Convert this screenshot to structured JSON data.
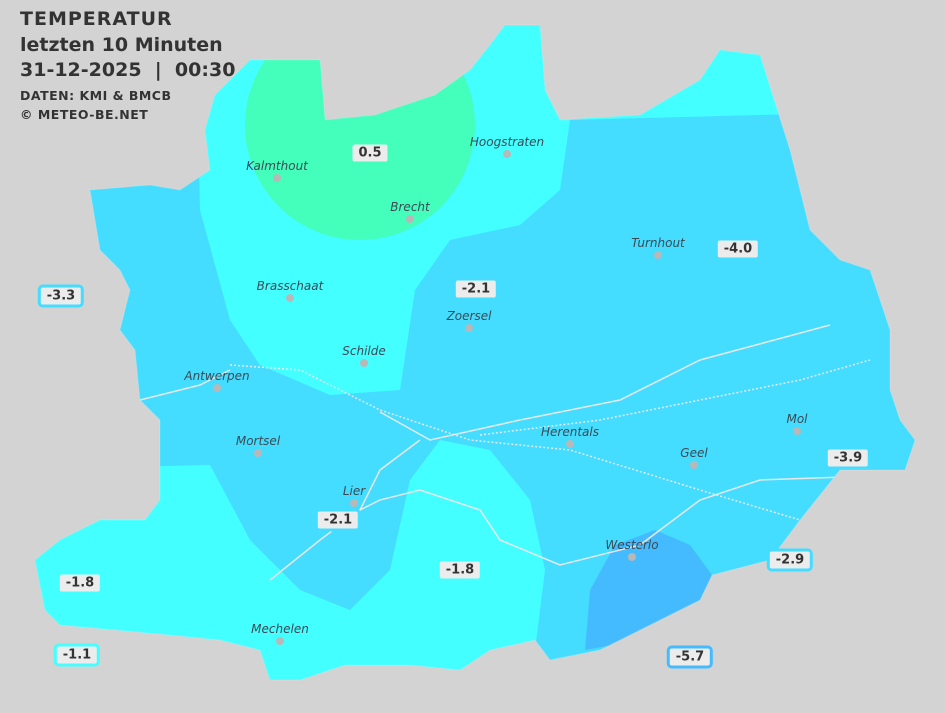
{
  "header": {
    "title": "TEMPERATUR",
    "subtitle": "letzten 10 Minuten",
    "datetime": "31-12-2025  |  00:30",
    "source": "DATEN: KMI & BMCB",
    "copyright": "© METEO-BE.NET"
  },
  "colors": {
    "background": "#d3d3d3",
    "zone_0_to_1": "#44ffbb",
    "zone_-1_to_-2": "#44ffff",
    "zone_-2_to_-5": "#44ddff",
    "zone_-5_to_-6": "#44bbff"
  },
  "cities": [
    {
      "name": "Kalmthout"
    },
    {
      "name": "Hoogstraten"
    },
    {
      "name": "Brecht"
    },
    {
      "name": "Turnhout"
    },
    {
      "name": "Brasschaat"
    },
    {
      "name": "Zoersel"
    },
    {
      "name": "Schilde"
    },
    {
      "name": "Antwerpen"
    },
    {
      "name": "Herentals"
    },
    {
      "name": "Mol"
    },
    {
      "name": "Mortsel"
    },
    {
      "name": "Geel"
    },
    {
      "name": "Lier"
    },
    {
      "name": "Westerlo"
    },
    {
      "name": "Mechelen"
    }
  ],
  "readings": [
    {
      "value": "0.5",
      "color": "#44ffbb"
    },
    {
      "value": "-4.0",
      "color": "#44ddff"
    },
    {
      "value": "-3.3",
      "color": "#44ddff"
    },
    {
      "value": "-2.1",
      "color": "#44ddff"
    },
    {
      "value": "-3.9",
      "color": "#44ddff"
    },
    {
      "value": "-2.1",
      "color": "#44ddff"
    },
    {
      "value": "-1.8",
      "color": "#44ffff"
    },
    {
      "value": "-2.9",
      "color": "#44ddff"
    },
    {
      "value": "-1.8",
      "color": "#44ffff"
    },
    {
      "value": "-1.1",
      "color": "#44ffff"
    },
    {
      "value": "-5.7",
      "color": "#44bbff"
    }
  ]
}
